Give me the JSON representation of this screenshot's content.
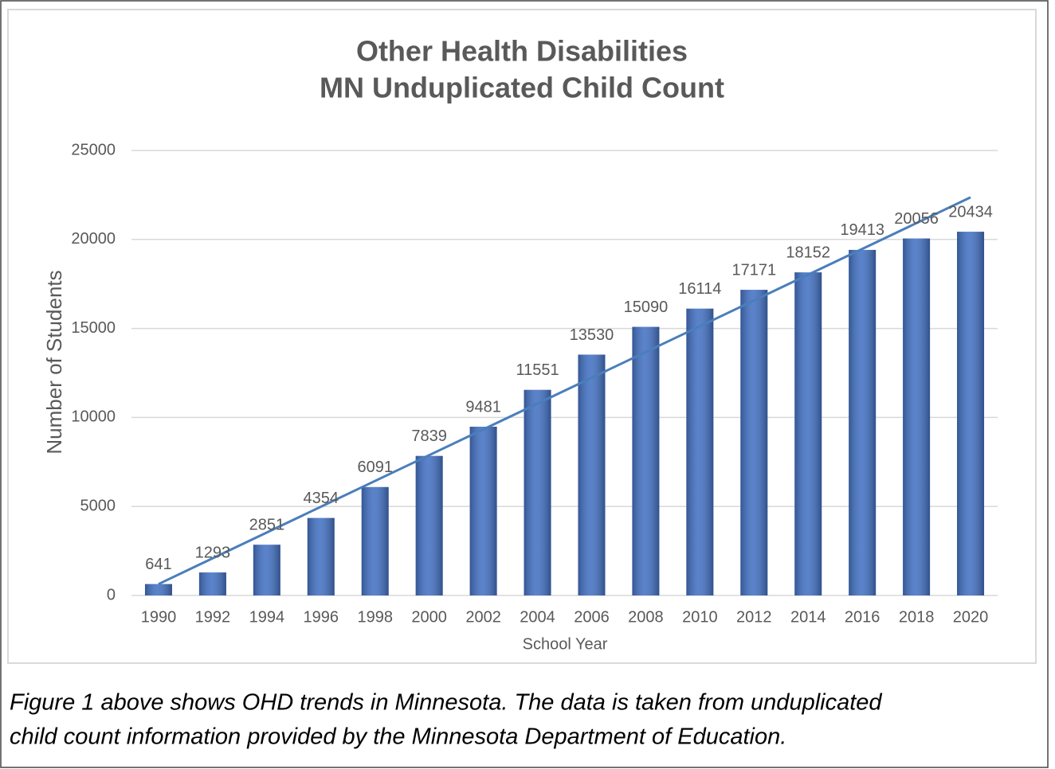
{
  "chart_data": {
    "type": "bar",
    "title": [
      "Other Health Disabilities",
      "MN Unduplicated Child Count"
    ],
    "x_label": "School Year",
    "y_label": "Number of Students",
    "categories": [
      "1990",
      "1992",
      "1994",
      "1996",
      "1998",
      "2000",
      "2002",
      "2004",
      "2006",
      "2008",
      "2010",
      "2012",
      "2014",
      "2016",
      "2018",
      "2020"
    ],
    "values": [
      641,
      1293,
      2851,
      4354,
      6091,
      7839,
      9481,
      11551,
      13530,
      15090,
      16114,
      17171,
      18152,
      19413,
      20056,
      20434
    ],
    "color": "#4472c4",
    "ylim": [
      0,
      25000
    ],
    "yticks": [
      0,
      5000,
      10000,
      15000,
      20000,
      25000
    ],
    "grid": true,
    "trendline": true,
    "trendline_color": "#4a7ebb"
  },
  "caption": [
    "Figure 1 above shows OHD trends in Minnesota. The data is taken from unduplicated",
    "child count information provided by the Minnesota Department of Education."
  ]
}
